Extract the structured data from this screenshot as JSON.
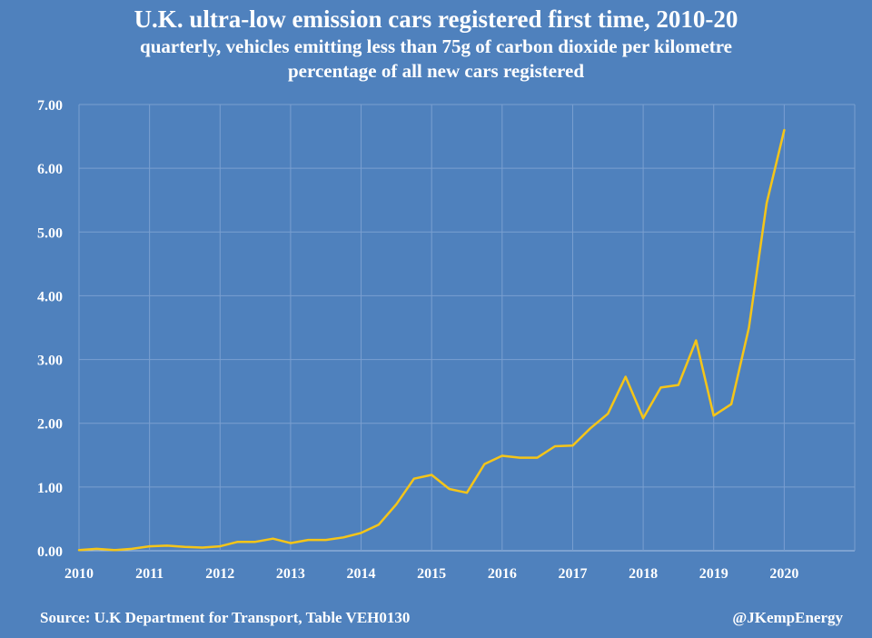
{
  "colors": {
    "background": "#4f81bd",
    "line": "#f5c518",
    "text": "#ffffff"
  },
  "chart_data": {
    "type": "line",
    "title": "U.K. ultra-low emission cars registered first time, 2010-20",
    "subtitle_lines": [
      "quarterly, vehicles emitting less than 75g of  carbon dioxide per kilometre",
      "percentage of  all new cars registered"
    ],
    "xlabel": "",
    "ylabel": "",
    "xlim": [
      2010,
      2021
    ],
    "ylim": [
      0,
      7
    ],
    "grid": true,
    "x_ticks": [
      "2010",
      "2011",
      "2012",
      "2013",
      "2014",
      "2015",
      "2016",
      "2017",
      "2018",
      "2019",
      "2020"
    ],
    "y_ticks": [
      "0.00",
      "1.00",
      "2.00",
      "3.00",
      "4.00",
      "5.00",
      "6.00",
      "7.00"
    ],
    "series": [
      {
        "x": [
          2010.0,
          2010.25,
          2010.5,
          2010.75,
          2011.0,
          2011.25,
          2011.5,
          2011.75,
          2012.0,
          2012.25,
          2012.5,
          2012.75,
          2013.0,
          2013.25,
          2013.5,
          2013.75,
          2014.0,
          2014.25,
          2014.5,
          2014.75,
          2015.0,
          2015.25,
          2015.5,
          2015.75,
          2016.0,
          2016.25,
          2016.5,
          2016.75,
          2017.0,
          2017.25,
          2017.5,
          2017.75,
          2018.0,
          2018.25,
          2018.5,
          2018.75,
          2019.0,
          2019.25,
          2019.5,
          2019.75,
          2020.0
        ],
        "values": [
          0.01,
          0.03,
          0.01,
          0.03,
          0.07,
          0.08,
          0.06,
          0.05,
          0.07,
          0.14,
          0.14,
          0.19,
          0.12,
          0.17,
          0.17,
          0.21,
          0.28,
          0.41,
          0.73,
          1.13,
          1.19,
          0.97,
          0.91,
          1.36,
          1.49,
          1.46,
          1.46,
          1.64,
          1.65,
          1.92,
          2.15,
          2.73,
          2.08,
          2.56,
          2.6,
          3.3,
          2.12,
          2.3,
          3.5,
          5.45,
          6.6
        ]
      }
    ]
  },
  "footer": {
    "source": "Source: U.K Department for Transport, Table VEH0130",
    "credit": "@JKempEnergy"
  }
}
